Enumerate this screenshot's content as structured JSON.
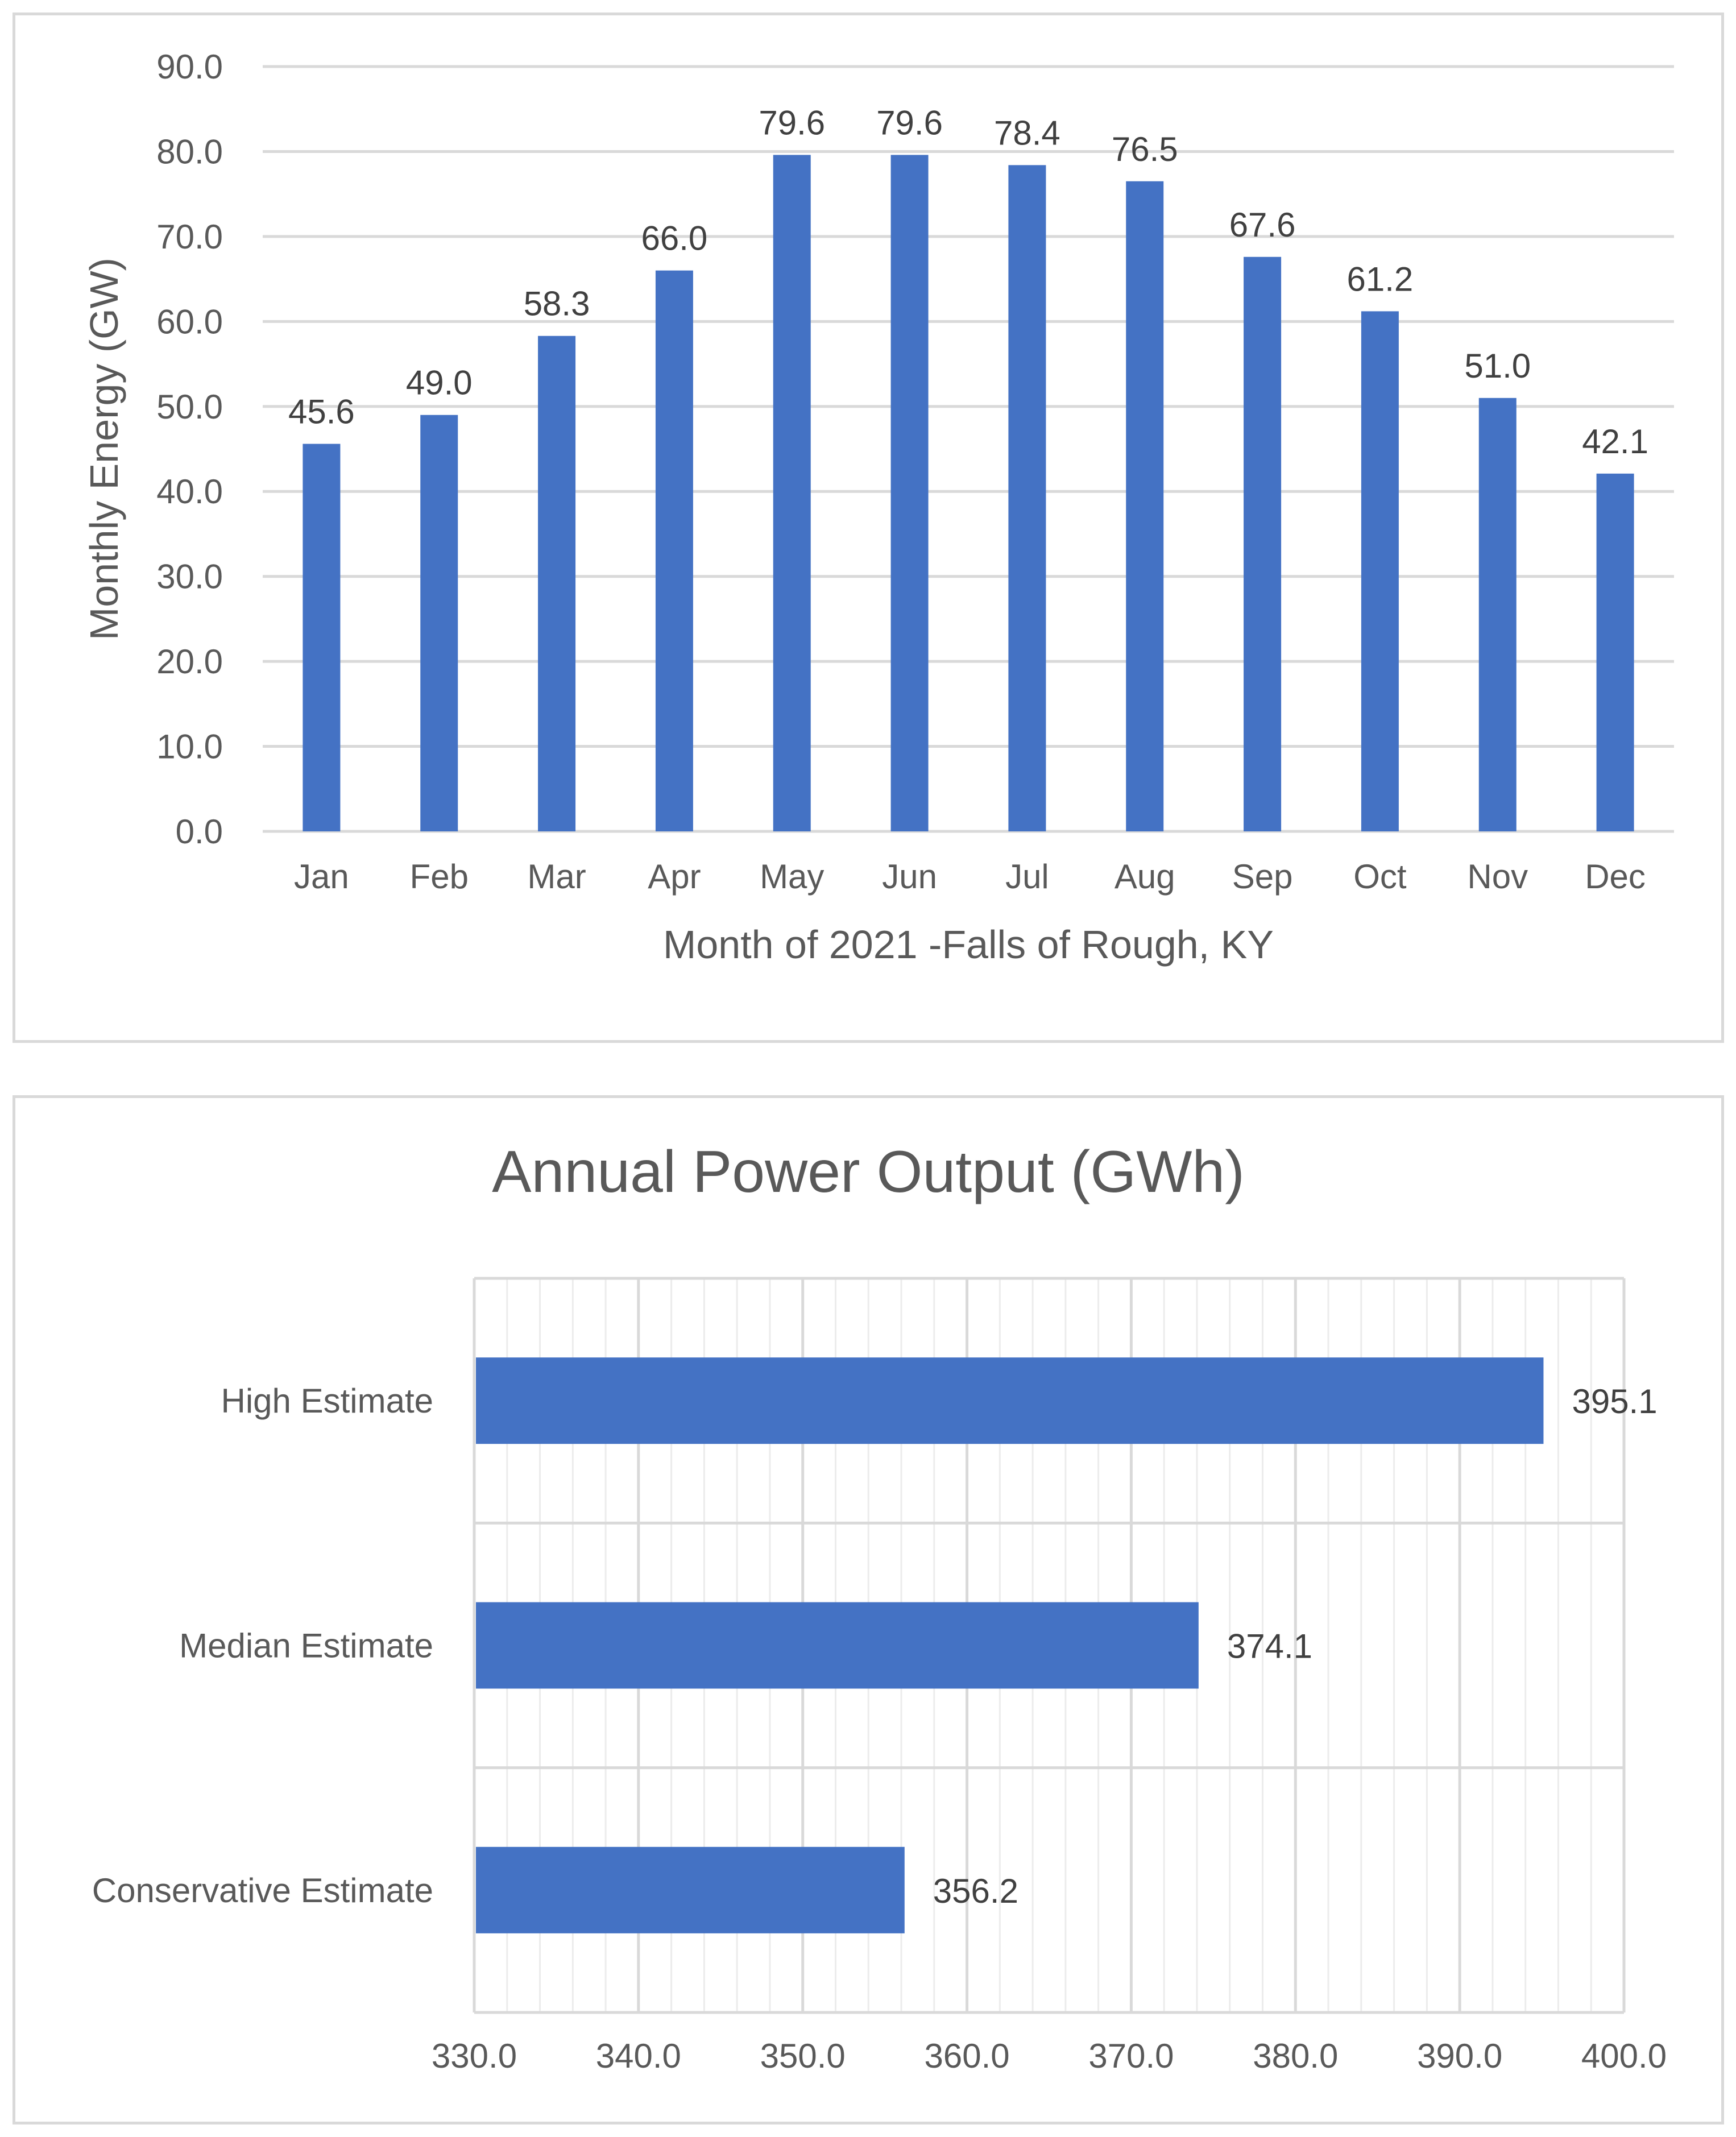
{
  "colors": {
    "bar": "#4472c4",
    "gridline": "#d9d9d9",
    "minor_gridline": "#ececec",
    "text": "#595959",
    "data_label": "#404040",
    "panel_border": "#d9d9d9"
  },
  "chart_data": [
    {
      "type": "bar",
      "orientation": "vertical",
      "title": "",
      "categories": [
        "Jan",
        "Feb",
        "Mar",
        "Apr",
        "May",
        "Jun",
        "Jul",
        "Aug",
        "Sep",
        "Oct",
        "Nov",
        "Dec"
      ],
      "values": [
        45.6,
        49.0,
        58.3,
        66.0,
        79.6,
        79.6,
        78.4,
        76.5,
        67.6,
        61.2,
        51.0,
        42.1
      ],
      "value_labels": [
        "45.6",
        "49.0",
        "58.3",
        "66.0",
        "79.6",
        "79.6",
        "78.4",
        "76.5",
        "67.6",
        "61.2",
        "51.0",
        "42.1"
      ],
      "xlabel": "Month of 2021 -Falls of Rough, KY",
      "ylabel": "Monthly Energy (GW)",
      "ylim": [
        0,
        90
      ],
      "yticks": [
        "0.0",
        "10.0",
        "20.0",
        "30.0",
        "40.0",
        "50.0",
        "60.0",
        "70.0",
        "80.0",
        "90.0"
      ],
      "grid": true,
      "legend": "none"
    },
    {
      "type": "bar",
      "orientation": "horizontal",
      "title": "Annual Power Output (GWh)",
      "categories": [
        "High Estimate",
        "Median Estimate",
        "Conservative Estimate"
      ],
      "values": [
        395.1,
        374.1,
        356.2
      ],
      "value_labels": [
        "395.1",
        "374.1",
        "356.2"
      ],
      "xlabel": "",
      "ylabel": "",
      "xlim": [
        330,
        400
      ],
      "xticks": [
        "330.0",
        "340.0",
        "350.0",
        "360.0",
        "370.0",
        "380.0",
        "390.0",
        "400.0"
      ],
      "grid": true,
      "legend": "none"
    }
  ]
}
